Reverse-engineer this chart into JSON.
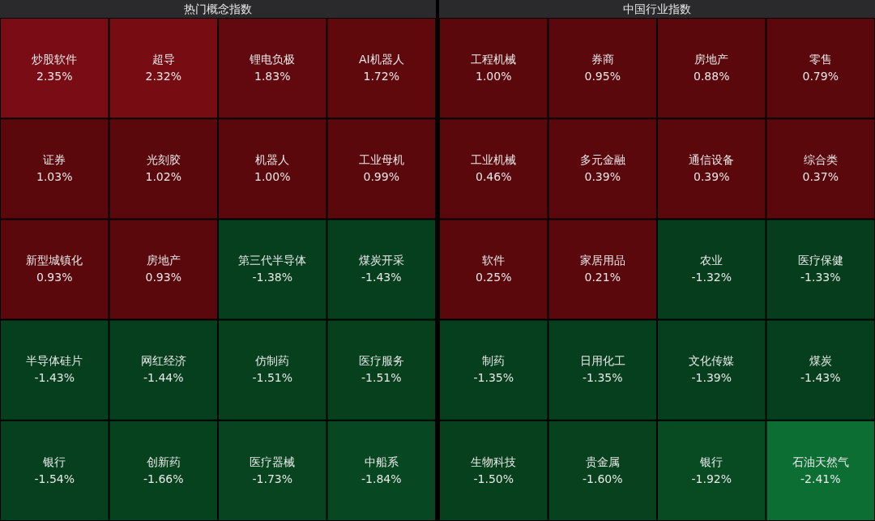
{
  "chart_data": [
    {
      "type": "other",
      "title": "热门概念指数",
      "categories": [
        "炒股软件",
        "超导",
        "锂电负极",
        "AI机器人",
        "证券",
        "光刻胶",
        "机器人",
        "工业母机",
        "新型城镇化",
        "房地产",
        "第三代半导体",
        "煤炭开采",
        "半导体硅片",
        "网红经济",
        "仿制药",
        "医疗服务",
        "银行",
        "创新药",
        "医疗器械",
        "中船系"
      ],
      "values": [
        2.35,
        2.32,
        1.83,
        1.72,
        1.03,
        1.02,
        1.0,
        0.99,
        0.93,
        0.93,
        -1.38,
        -1.43,
        -1.43,
        -1.44,
        -1.51,
        -1.51,
        -1.54,
        -1.66,
        -1.73,
        -1.84
      ],
      "value_labels": [
        "2.35%",
        "2.32%",
        "1.83%",
        "1.72%",
        "1.03%",
        "1.02%",
        "1.00%",
        "0.99%",
        "0.93%",
        "0.93%",
        "-1.38%",
        "-1.43%",
        "-1.43%",
        "-1.44%",
        "-1.51%",
        "-1.51%",
        "-1.54%",
        "-1.66%",
        "-1.73%",
        "-1.84%"
      ]
    },
    {
      "type": "other",
      "title": "中国行业指数",
      "categories": [
        "工程机械",
        "券商",
        "房地产",
        "零售",
        "工业机械",
        "多元金融",
        "通信设备",
        "综合类",
        "软件",
        "家居用品",
        "农业",
        "医疗保健",
        "制药",
        "日用化工",
        "文化传媒",
        "煤炭",
        "生物科技",
        "贵金属",
        "银行",
        "石油天然气"
      ],
      "values": [
        1.0,
        0.95,
        0.88,
        0.79,
        0.46,
        0.39,
        0.39,
        0.37,
        0.25,
        0.21,
        -1.32,
        -1.33,
        -1.35,
        -1.35,
        -1.39,
        -1.43,
        -1.5,
        -1.6,
        -1.92,
        -2.41
      ],
      "value_labels": [
        "1.00%",
        "0.95%",
        "0.88%",
        "0.79%",
        "0.46%",
        "0.39%",
        "0.39%",
        "0.37%",
        "0.25%",
        "0.21%",
        "-1.32%",
        "-1.33%",
        "-1.35%",
        "-1.35%",
        "-1.39%",
        "-1.43%",
        "-1.50%",
        "-1.60%",
        "-1.92%",
        "-2.41%"
      ]
    }
  ]
}
